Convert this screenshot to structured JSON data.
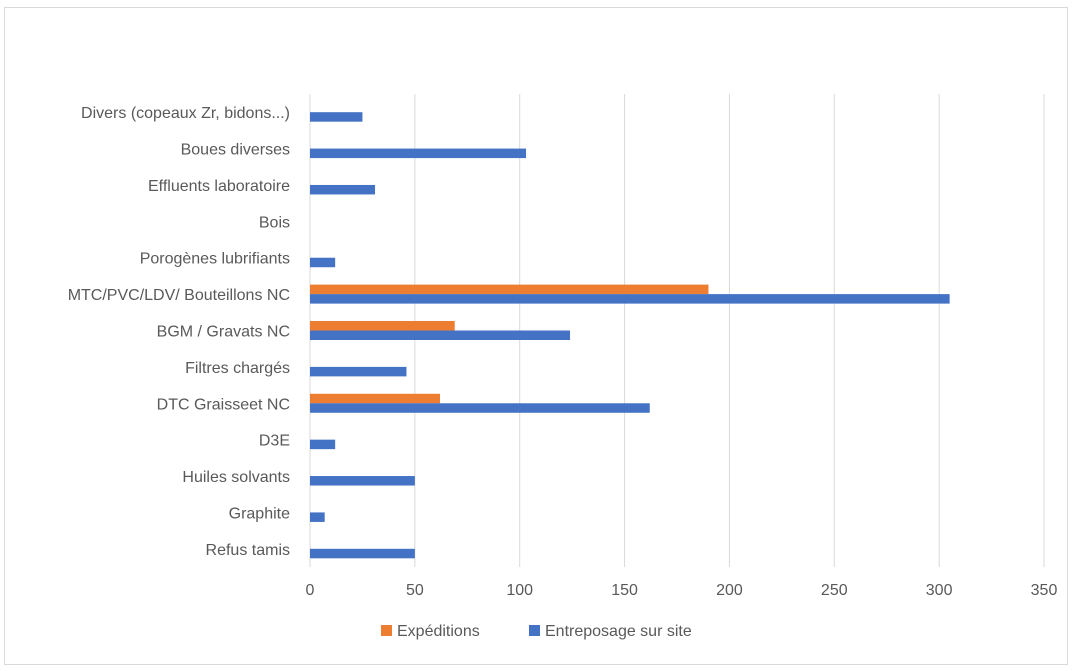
{
  "chart_data": {
    "type": "bar",
    "orientation": "horizontal",
    "title": "",
    "xlabel": "",
    "ylabel": "",
    "xlim": [
      0,
      350
    ],
    "x_ticks": [
      "0",
      "50",
      "100",
      "150",
      "200",
      "250",
      "300",
      "350"
    ],
    "grid": "vertical",
    "legend_position": "bottom",
    "categories": [
      "Refus tamis",
      "Graphite",
      "Huiles solvants",
      "D3E",
      "DTC Graisseet NC",
      "Filtres chargés",
      "BGM / Gravats NC",
      "MTC/PVC/LDV/ Bouteillons NC",
      "Porogènes lubrifiants",
      "Bois",
      "Effluents laboratoire",
      "Boues diverses",
      "Divers (copeaux Zr, bidons...)"
    ],
    "series": [
      {
        "name": "Expéditions",
        "color": "#ED7D31",
        "values": [
          0,
          0,
          0,
          0,
          62,
          0,
          69,
          190,
          0,
          0,
          0,
          0,
          0
        ]
      },
      {
        "name": "Entreposage sur site",
        "color": "#4472C4",
        "values": [
          50,
          7,
          50,
          12,
          162,
          46,
          124,
          305,
          12,
          0,
          31,
          103,
          25
        ]
      }
    ]
  }
}
